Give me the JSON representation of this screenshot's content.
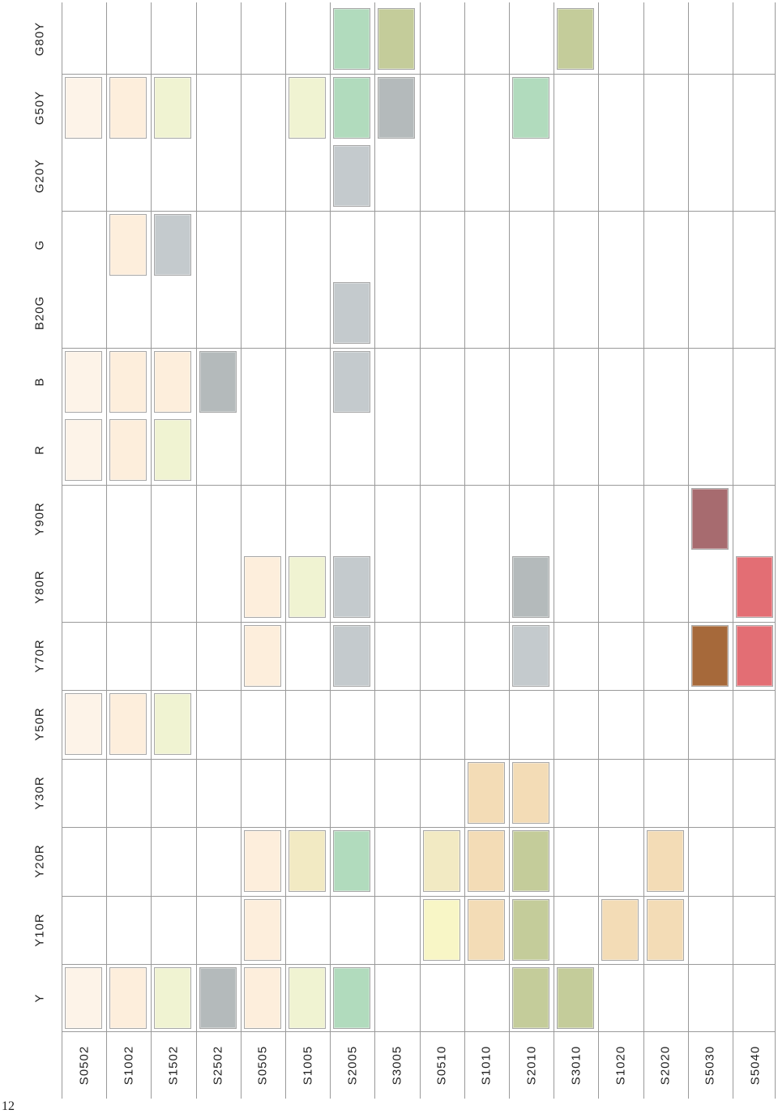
{
  "page_number": "12",
  "hue_headers": [
    "Y",
    "Y10R",
    "Y20R",
    "Y30R",
    "Y50R",
    "Y70R",
    "Y80R",
    "Y90R",
    "R",
    "B",
    "B20G",
    "G",
    "G20Y",
    "G50Y",
    "G80Y"
  ],
  "nuance_labels": [
    "S0502",
    "S1002",
    "S1502",
    "S2502",
    "S0505",
    "S1005",
    "S2005",
    "S3005",
    "S0510",
    "S1010",
    "S2010",
    "S3010",
    "S1020",
    "S2020",
    "S5030",
    "S5040"
  ],
  "colors": {
    "cream": "#fdf3e8",
    "peach": "#fdeedc",
    "light_green": "#f0f3d2",
    "grey": "#c4cacd",
    "dark_grey": "#b4babb",
    "mint": "#b1dbbd",
    "olive": "#c4cc9a",
    "sand": "#f3dcb6",
    "light_yellow": "#f8f6c6",
    "straw": "#f2eac3",
    "mauve": "#a76b6f",
    "brown": "#a6693a",
    "coral": "#e36e74"
  },
  "swatches": [
    {
      "nuance": "S0502",
      "hue": "Y",
      "color": "cream"
    },
    {
      "nuance": "S0502",
      "hue": "Y50R",
      "color": "cream"
    },
    {
      "nuance": "S0502",
      "hue": "R",
      "color": "cream"
    },
    {
      "nuance": "S0502",
      "hue": "B",
      "color": "cream"
    },
    {
      "nuance": "S0502",
      "hue": "G50Y",
      "color": "cream"
    },
    {
      "nuance": "S1002",
      "hue": "Y",
      "color": "peach"
    },
    {
      "nuance": "S1002",
      "hue": "Y50R",
      "color": "peach"
    },
    {
      "nuance": "S1002",
      "hue": "R",
      "color": "peach"
    },
    {
      "nuance": "S1002",
      "hue": "B",
      "color": "peach"
    },
    {
      "nuance": "S1002",
      "hue": "G",
      "color": "peach"
    },
    {
      "nuance": "S1002",
      "hue": "G50Y",
      "color": "peach"
    },
    {
      "nuance": "S1502",
      "hue": "Y",
      "color": "light_green"
    },
    {
      "nuance": "S1502",
      "hue": "Y50R",
      "color": "light_green"
    },
    {
      "nuance": "S1502",
      "hue": "R",
      "color": "light_green"
    },
    {
      "nuance": "S1502",
      "hue": "B",
      "color": "peach"
    },
    {
      "nuance": "S1502",
      "hue": "G",
      "color": "grey"
    },
    {
      "nuance": "S1502",
      "hue": "G50Y",
      "color": "light_green"
    },
    {
      "nuance": "S2502",
      "hue": "Y",
      "color": "dark_grey"
    },
    {
      "nuance": "S2502",
      "hue": "B",
      "color": "dark_grey"
    },
    {
      "nuance": "S0505",
      "hue": "Y",
      "color": "peach"
    },
    {
      "nuance": "S0505",
      "hue": "Y10R",
      "color": "peach"
    },
    {
      "nuance": "S0505",
      "hue": "Y20R",
      "color": "peach"
    },
    {
      "nuance": "S0505",
      "hue": "Y70R",
      "color": "peach"
    },
    {
      "nuance": "S0505",
      "hue": "Y80R",
      "color": "peach"
    },
    {
      "nuance": "S1005",
      "hue": "Y",
      "color": "light_green"
    },
    {
      "nuance": "S1005",
      "hue": "Y20R",
      "color": "straw"
    },
    {
      "nuance": "S1005",
      "hue": "Y80R",
      "color": "light_green"
    },
    {
      "nuance": "S1005",
      "hue": "G50Y",
      "color": "light_green"
    },
    {
      "nuance": "S2005",
      "hue": "Y",
      "color": "mint"
    },
    {
      "nuance": "S2005",
      "hue": "Y20R",
      "color": "mint"
    },
    {
      "nuance": "S2005",
      "hue": "Y70R",
      "color": "grey"
    },
    {
      "nuance": "S2005",
      "hue": "Y80R",
      "color": "grey"
    },
    {
      "nuance": "S2005",
      "hue": "B",
      "color": "grey"
    },
    {
      "nuance": "S2005",
      "hue": "B20G",
      "color": "grey"
    },
    {
      "nuance": "S2005",
      "hue": "G20Y",
      "color": "grey"
    },
    {
      "nuance": "S2005",
      "hue": "G50Y",
      "color": "mint"
    },
    {
      "nuance": "S2005",
      "hue": "G80Y",
      "color": "mint"
    },
    {
      "nuance": "S3005",
      "hue": "G50Y",
      "color": "dark_grey"
    },
    {
      "nuance": "S3005",
      "hue": "G80Y",
      "color": "olive"
    },
    {
      "nuance": "S0510",
      "hue": "Y10R",
      "color": "light_yellow"
    },
    {
      "nuance": "S0510",
      "hue": "Y20R",
      "color": "straw"
    },
    {
      "nuance": "S1010",
      "hue": "Y10R",
      "color": "sand"
    },
    {
      "nuance": "S1010",
      "hue": "Y20R",
      "color": "sand"
    },
    {
      "nuance": "S1010",
      "hue": "Y30R",
      "color": "sand"
    },
    {
      "nuance": "S2010",
      "hue": "Y",
      "color": "olive"
    },
    {
      "nuance": "S2010",
      "hue": "Y10R",
      "color": "olive"
    },
    {
      "nuance": "S2010",
      "hue": "Y20R",
      "color": "olive"
    },
    {
      "nuance": "S2010",
      "hue": "Y30R",
      "color": "sand"
    },
    {
      "nuance": "S2010",
      "hue": "Y70R",
      "color": "grey"
    },
    {
      "nuance": "S2010",
      "hue": "Y80R",
      "color": "dark_grey"
    },
    {
      "nuance": "S2010",
      "hue": "G50Y",
      "color": "mint"
    },
    {
      "nuance": "S3010",
      "hue": "Y",
      "color": "olive"
    },
    {
      "nuance": "S3010",
      "hue": "G80Y",
      "color": "olive"
    },
    {
      "nuance": "S1020",
      "hue": "Y10R",
      "color": "sand"
    },
    {
      "nuance": "S2020",
      "hue": "Y10R",
      "color": "sand"
    },
    {
      "nuance": "S2020",
      "hue": "Y20R",
      "color": "sand"
    },
    {
      "nuance": "S5030",
      "hue": "Y70R",
      "color": "brown"
    },
    {
      "nuance": "S5030",
      "hue": "Y90R",
      "color": "mauve"
    },
    {
      "nuance": "S5040",
      "hue": "Y70R",
      "color": "coral"
    },
    {
      "nuance": "S5040",
      "hue": "Y80R",
      "color": "coral"
    }
  ]
}
